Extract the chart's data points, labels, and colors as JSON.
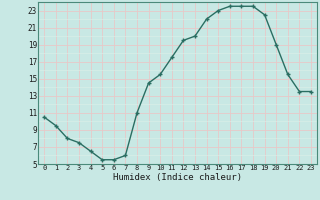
{
  "x": [
    0,
    1,
    2,
    3,
    4,
    5,
    6,
    7,
    8,
    9,
    10,
    11,
    12,
    13,
    14,
    15,
    16,
    17,
    18,
    19,
    20,
    21,
    22,
    23
  ],
  "y": [
    10.5,
    9.5,
    8.0,
    7.5,
    6.5,
    5.5,
    5.5,
    6.0,
    11.0,
    14.5,
    15.5,
    17.5,
    19.5,
    20.0,
    22.0,
    23.0,
    23.5,
    23.5,
    23.5,
    22.5,
    19.0,
    15.5,
    13.5,
    13.5
  ],
  "xlabel": "Humidex (Indice chaleur)",
  "bg_color": "#c8e8e4",
  "line_color": "#2a6e62",
  "major_grid_color": "#e8c8c8",
  "minor_grid_color": "#d8eee8",
  "xlim": [
    -0.5,
    23.5
  ],
  "ylim": [
    5,
    24
  ],
  "yticks": [
    5,
    7,
    9,
    11,
    13,
    15,
    17,
    19,
    21,
    23
  ],
  "xticks": [
    0,
    1,
    2,
    3,
    4,
    5,
    6,
    7,
    8,
    9,
    10,
    11,
    12,
    13,
    14,
    15,
    16,
    17,
    18,
    19,
    20,
    21,
    22,
    23
  ]
}
